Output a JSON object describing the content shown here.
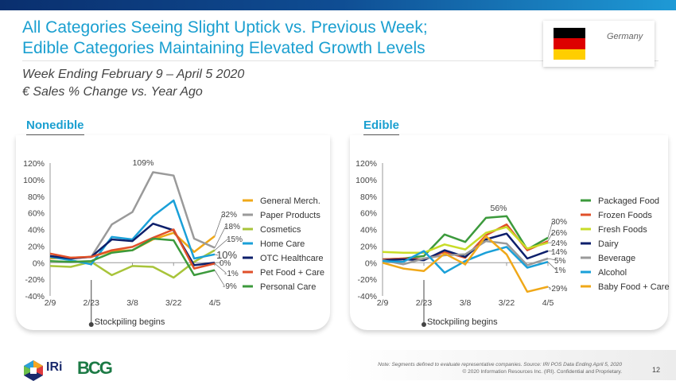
{
  "header": {
    "title_line1": "All Categories Seeing Slight Uptick vs. Previous Week;",
    "title_line2": "Edible Categories Maintaining Elevated Growth Levels",
    "subtitle_line1": "Week Ending February 9 – April 5 2020",
    "subtitle_line2": "€ Sales % Change vs. Year Ago",
    "country": "Germany",
    "flag_colors": [
      "#000000",
      "#dd0000",
      "#ffce00"
    ]
  },
  "footer": {
    "note": "Note: Segments defined to evaluate representative companies. Source: IRI POS Data Ending April 5, 2020",
    "copyright": "© 2020 Information Resources Inc. (IRI). Confidential and Proprietary.",
    "page_number": "12",
    "logo_iri": "IRi",
    "logo_bcg": "BCG"
  },
  "chart_data": [
    {
      "type": "line",
      "title": "Nonedible",
      "x": [
        "2/9",
        "2/16",
        "2/23",
        "3/1",
        "3/8",
        "3/15",
        "3/22",
        "3/29",
        "4/5"
      ],
      "xtick_labels": [
        "2/9",
        "2/23",
        "3/8",
        "3/22",
        "4/5"
      ],
      "ylim": [
        -40,
        120
      ],
      "yticks": [
        "120%",
        "100%",
        "80%",
        "60%",
        "40%",
        "20%",
        "0%",
        "-20%",
        "-40%"
      ],
      "yticks_values": [
        120,
        100,
        80,
        60,
        40,
        20,
        0,
        -20,
        -40
      ],
      "annotation": "Stockpiling begins",
      "annotation_x": "2/23",
      "peak_label": "109%",
      "legend_position": "right",
      "series": [
        {
          "name": "General Merch.",
          "color": "#f0a818",
          "values": [
            5,
            6,
            7,
            14,
            15,
            28,
            36,
            13,
            32
          ],
          "end_label": "32%"
        },
        {
          "name": "Paper Products",
          "color": "#9a9a9a",
          "values": [
            8,
            5,
            7,
            46,
            61,
            109,
            105,
            29,
            18
          ],
          "end_label": "18%"
        },
        {
          "name": "Cosmetics",
          "color": "#a8c43a",
          "values": [
            -4,
            -5,
            1,
            -15,
            -4,
            -5,
            -18,
            1,
            15
          ],
          "end_label": "15%"
        },
        {
          "name": "Home Care",
          "color": "#1aa0d8",
          "values": [
            7,
            3,
            -2,
            31,
            28,
            56,
            75,
            5,
            10
          ],
          "end_label": "10%"
        },
        {
          "name": "OTC Healthcare",
          "color": "#0d1f6b",
          "values": [
            8,
            5,
            7,
            28,
            26,
            47,
            39,
            -3,
            0
          ],
          "end_label": "0%"
        },
        {
          "name": "Pet Food + Care",
          "color": "#e0502a",
          "values": [
            11,
            6,
            7,
            15,
            19,
            30,
            40,
            -7,
            -1
          ],
          "end_label": "-1%"
        },
        {
          "name": "Personal Care",
          "color": "#3c9a3c",
          "values": [
            2,
            1,
            2,
            12,
            15,
            29,
            27,
            -15,
            -9
          ],
          "end_label": "-9%"
        }
      ]
    },
    {
      "type": "line",
      "title": "Edible",
      "x": [
        "2/9",
        "2/16",
        "2/23",
        "3/1",
        "3/8",
        "3/15",
        "3/22",
        "3/29",
        "4/5"
      ],
      "xtick_labels": [
        "2/9",
        "2/23",
        "3/8",
        "3/22",
        "4/5"
      ],
      "ylim": [
        -40,
        120
      ],
      "yticks": [
        "120%",
        "100%",
        "80%",
        "60%",
        "40%",
        "20%",
        "0%",
        "-20%",
        "-40%"
      ],
      "yticks_values": [
        120,
        100,
        80,
        60,
        40,
        20,
        0,
        -20,
        -40
      ],
      "annotation": "Stockpiling begins",
      "annotation_x": "2/23",
      "peak_label": "56%",
      "legend_position": "right",
      "series": [
        {
          "name": "Packaged Food",
          "color": "#3c9a3c",
          "values": [
            4,
            5,
            8,
            34,
            25,
            54,
            56,
            16,
            30
          ],
          "end_label": "30%"
        },
        {
          "name": "Frozen Foods",
          "color": "#e0502a",
          "values": [
            4,
            5,
            4,
            13,
            6,
            33,
            46,
            15,
            26
          ],
          "end_label": "26%"
        },
        {
          "name": "Fresh Foods",
          "color": "#c8dc28",
          "values": [
            13,
            12,
            12,
            22,
            16,
            36,
            43,
            17,
            24
          ],
          "end_label": "24%"
        },
        {
          "name": "Dairy",
          "color": "#0d1f6b",
          "values": [
            3,
            4,
            3,
            15,
            7,
            28,
            35,
            5,
            14
          ],
          "end_label": "14%"
        },
        {
          "name": "Beverage",
          "color": "#9a9a9a",
          "values": [
            3,
            -2,
            5,
            9,
            10,
            26,
            23,
            -3,
            5
          ],
          "end_label": "5%"
        },
        {
          "name": "Alcohol",
          "color": "#1aa0d8",
          "values": [
            2,
            1,
            14,
            -12,
            2,
            12,
            19,
            -6,
            1
          ],
          "end_label": "1%"
        },
        {
          "name": "Baby Food + Care",
          "color": "#f0a818",
          "values": [
            0,
            -7,
            -10,
            11,
            -2,
            32,
            10,
            -35,
            -29
          ],
          "end_label": "-29%"
        }
      ]
    }
  ]
}
